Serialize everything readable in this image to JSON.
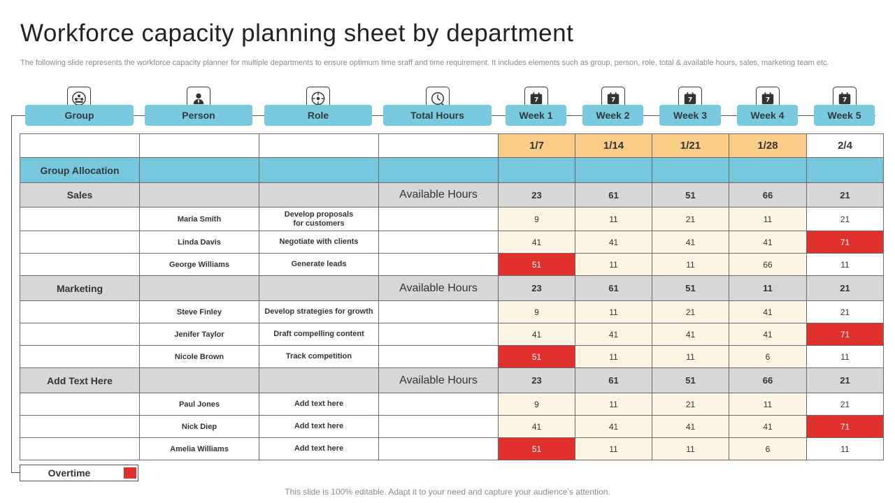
{
  "title": "Workforce capacity planning sheet by department",
  "subtitle": "The following slide represents the workforce capacity planner for multiple departments to ensure optimum time sraff and time requirement. It includes elements such as group, person, role, total & available hours, sales, marketing team etc.",
  "headers": {
    "group": "Group",
    "person": "Person",
    "role": "Role",
    "total_hours": "Total Hours",
    "week1": "Week 1",
    "week2": "Week 2",
    "week3": "Week 3",
    "week4": "Week 4",
    "week5": "Week 5"
  },
  "icons": {
    "group": "team-icon",
    "person": "person-icon",
    "role": "role-icon",
    "total_hours": "clock-icon",
    "week": "calendar-icon"
  },
  "dates": [
    "1/7",
    "1/14",
    "1/21",
    "1/28",
    "2/4"
  ],
  "group_allocation_label": "Group Allocation",
  "groups": [
    {
      "name": "Sales",
      "available_label": "Available Hours",
      "available": [
        "23",
        "61",
        "51",
        "66",
        "21"
      ],
      "people": [
        {
          "person": "Maria Smith",
          "role": "Develop proposals for customers",
          "hours": [
            "9",
            "11",
            "21",
            "11",
            "21"
          ],
          "overtime": [
            false,
            false,
            false,
            false,
            false
          ]
        },
        {
          "person": "Linda Davis",
          "role": "Negotiate with clients",
          "hours": [
            "41",
            "41",
            "41",
            "41",
            "71"
          ],
          "overtime": [
            false,
            false,
            false,
            false,
            true
          ]
        },
        {
          "person": "George Williams",
          "role": "Generate leads",
          "hours": [
            "51",
            "11",
            "11",
            "66",
            "11"
          ],
          "overtime": [
            true,
            false,
            false,
            false,
            false
          ]
        }
      ]
    },
    {
      "name": "Marketing",
      "available_label": "Available Hours",
      "available": [
        "23",
        "61",
        "51",
        "11",
        "21"
      ],
      "people": [
        {
          "person": "Steve Finley",
          "role": "Develop strategies for growth",
          "hours": [
            "9",
            "11",
            "21",
            "41",
            "21"
          ],
          "overtime": [
            false,
            false,
            false,
            false,
            false
          ]
        },
        {
          "person": "Jenifer Taylor",
          "role": "Draft compelling content",
          "hours": [
            "41",
            "41",
            "41",
            "41",
            "71"
          ],
          "overtime": [
            false,
            false,
            false,
            false,
            true
          ]
        },
        {
          "person": "Nicole Brown",
          "role": "Track competition",
          "hours": [
            "51",
            "11",
            "11",
            "6",
            "11"
          ],
          "overtime": [
            true,
            false,
            false,
            false,
            false
          ]
        }
      ]
    },
    {
      "name": "Add Text Here",
      "available_label": "Available Hours",
      "available": [
        "23",
        "61",
        "51",
        "66",
        "21"
      ],
      "people": [
        {
          "person": "Paul Jones",
          "role": "Add text here",
          "hours": [
            "9",
            "11",
            "21",
            "11",
            "21"
          ],
          "overtime": [
            false,
            false,
            false,
            false,
            false
          ]
        },
        {
          "person": "Nick Diep",
          "role": "Add text here",
          "hours": [
            "41",
            "41",
            "41",
            "41",
            "71"
          ],
          "overtime": [
            false,
            false,
            false,
            false,
            true
          ]
        },
        {
          "person": "Amelia Williams",
          "role": "Add text here",
          "hours": [
            "51",
            "11",
            "11",
            "6",
            "11"
          ],
          "overtime": [
            true,
            false,
            false,
            false,
            false
          ]
        }
      ]
    }
  ],
  "legend": {
    "label": "Overtime",
    "color": "#e0302b"
  },
  "footer": "This slide is 100% editable. Adapt it to your need and capture your audience’s attention.",
  "colors": {
    "header_pill": "#7ac9de",
    "date_cell": "#f9cd86",
    "value_cell": "#fdf4e4",
    "group_row": "#d7d7d7",
    "overtime": "#e0302b"
  }
}
